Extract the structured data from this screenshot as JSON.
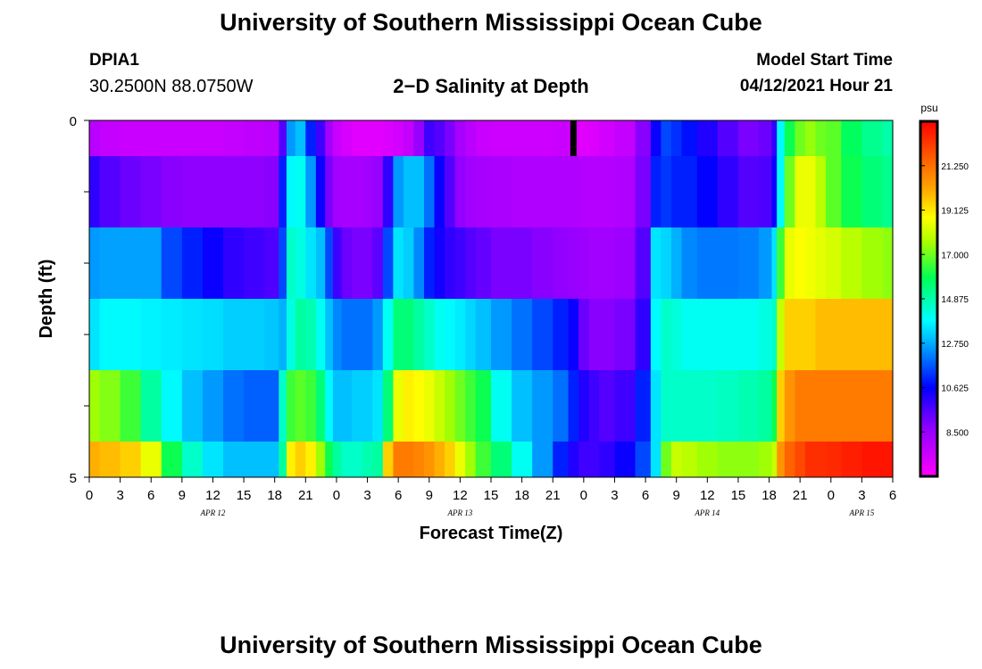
{
  "header": {
    "title": "University of Southern Mississippi Ocean Cube",
    "station": "DPIA1",
    "coords": "30.2500N  88.0750W",
    "subtitle": "2−D Salinity at Depth",
    "model_label": "Model Start Time",
    "model_value": "04/12/2021 Hour 21"
  },
  "footer": {
    "title": "University of Southern Mississippi Ocean Cube"
  },
  "chart_data": {
    "type": "heatmap",
    "xlabel": "Forecast Time(Z)",
    "ylabel": "Depth (ft)",
    "x_tick_labels": [
      "0",
      "3",
      "6",
      "9",
      "12",
      "15",
      "18",
      "21",
      "0",
      "3",
      "6",
      "9",
      "12",
      "15",
      "18",
      "21",
      "0",
      "3",
      "6",
      "9",
      "12",
      "15",
      "18",
      "21",
      "0",
      "3",
      "6"
    ],
    "x_day_labels": [
      {
        "label": "APR 12",
        "hour": 12
      },
      {
        "label": "APR 13",
        "hour": 36
      },
      {
        "label": "APR 14",
        "hour": 60
      },
      {
        "label": "APR 15",
        "hour": 75
      }
    ],
    "xlim_hours": [
      0,
      78
    ],
    "y_tick_labels": [
      {
        "label": "0",
        "depth": 0
      },
      {
        "label": "5",
        "depth": 5
      }
    ],
    "ylim": [
      0,
      5
    ],
    "depth_rows": [
      "0-0.5",
      "0.5-1.5",
      "1.5-2.5",
      "2.5-3.5",
      "3.5-4.5",
      "4.5-5"
    ],
    "colorbar": {
      "unit": "psu",
      "min": 6.375,
      "max": 23.375,
      "tick_labels": [
        "8.500",
        "10.625",
        "12.750",
        "14.875",
        "17.000",
        "19.125",
        "21.250"
      ],
      "tick_values": [
        8.5,
        10.625,
        12.75,
        14.875,
        17.0,
        19.125,
        21.25
      ]
    },
    "salinity_psu": {
      "hours": [
        0,
        2,
        4,
        6,
        8,
        10,
        12,
        14,
        16,
        18,
        18.8,
        19.5,
        20.5,
        21.5,
        22.5,
        23.3,
        24,
        25,
        26,
        27,
        28,
        29,
        30,
        31,
        32,
        33,
        34,
        35,
        36,
        37,
        38,
        40,
        42,
        44,
        46,
        47,
        48,
        49,
        50,
        52,
        54,
        55,
        56,
        57,
        58,
        60,
        62,
        64,
        66,
        66.5,
        67,
        68,
        69,
        70,
        71,
        72,
        74,
        76,
        78
      ],
      "rows": [
        [
          7.8,
          7.6,
          7.5,
          7.5,
          7.5,
          7.5,
          7.5,
          7.6,
          7.7,
          7.8,
          9.5,
          12.5,
          13.0,
          11.0,
          9.8,
          8.3,
          7.5,
          7.2,
          7.0,
          7.0,
          7.0,
          7.1,
          7.3,
          7.6,
          8.5,
          9.8,
          9.5,
          9.0,
          8.2,
          7.8,
          7.5,
          7.4,
          7.4,
          7.4,
          7.5,
          7.2,
          7.0,
          7.1,
          7.3,
          7.6,
          8.8,
          10.5,
          11.5,
          11.2,
          10.8,
          10.2,
          9.5,
          9.0,
          9.2,
          10.0,
          13.8,
          16.0,
          17.0,
          17.4,
          17.0,
          16.8,
          15.8,
          15.2,
          14.9
        ],
        [
          10.0,
          9.5,
          9.2,
          9.0,
          8.8,
          8.7,
          8.7,
          8.7,
          8.7,
          8.8,
          11.0,
          13.8,
          14.0,
          12.5,
          10.5,
          9.0,
          8.3,
          8.2,
          8.2,
          8.3,
          8.5,
          10.0,
          12.5,
          13.0,
          13.0,
          12.0,
          10.5,
          9.5,
          8.6,
          8.3,
          8.2,
          8.1,
          8.0,
          8.0,
          8.0,
          8.0,
          7.9,
          7.9,
          7.9,
          8.0,
          9.0,
          11.0,
          11.3,
          11.0,
          11.0,
          10.6,
          10.0,
          9.5,
          9.6,
          10.5,
          13.8,
          17.0,
          18.5,
          18.5,
          17.8,
          16.8,
          16.0,
          15.5,
          15.2
        ],
        [
          12.5,
          12.6,
          12.6,
          12.6,
          11.5,
          11.0,
          10.5,
          10.0,
          9.8,
          9.6,
          11.5,
          14.5,
          14.2,
          13.5,
          13.0,
          11.5,
          9.8,
          9.2,
          9.0,
          9.0,
          9.4,
          11.5,
          13.5,
          13.2,
          12.3,
          11.0,
          10.4,
          10.0,
          9.8,
          9.5,
          9.3,
          9.0,
          9.0,
          8.8,
          8.6,
          8.5,
          8.4,
          8.3,
          8.3,
          8.4,
          9.5,
          13.5,
          13.3,
          12.8,
          12.3,
          12.1,
          12.1,
          12.2,
          12.5,
          13.5,
          16.5,
          18.5,
          18.8,
          18.6,
          18.4,
          18.2,
          17.8,
          17.5,
          17.3
        ],
        [
          13.5,
          13.8,
          13.8,
          13.7,
          13.6,
          13.5,
          13.4,
          13.2,
          13.2,
          13.1,
          12.8,
          14.2,
          15.0,
          14.8,
          14.0,
          13.0,
          12.3,
          12.0,
          12.0,
          12.0,
          12.5,
          14.0,
          15.5,
          15.5,
          15.0,
          14.5,
          14.0,
          13.8,
          13.6,
          13.3,
          13.0,
          12.5,
          12.0,
          11.5,
          11.0,
          10.5,
          9.2,
          8.8,
          8.8,
          9.0,
          10.0,
          13.8,
          14.5,
          14.3,
          14.0,
          14.0,
          14.0,
          14.0,
          14.2,
          14.5,
          18.0,
          19.5,
          19.5,
          19.5,
          19.8,
          19.8,
          19.8,
          19.8,
          19.8
        ],
        [
          17.5,
          17.2,
          16.5,
          15.0,
          13.8,
          13.0,
          12.5,
          12.0,
          11.8,
          11.8,
          14.5,
          16.5,
          16.8,
          16.5,
          15.5,
          13.8,
          13.0,
          13.0,
          13.2,
          13.2,
          13.5,
          15.5,
          18.5,
          19.0,
          18.8,
          18.5,
          18.0,
          17.5,
          17.0,
          16.5,
          16.0,
          14.0,
          13.0,
          12.5,
          12.0,
          11.0,
          10.2,
          9.8,
          9.5,
          9.8,
          11.0,
          13.5,
          14.5,
          14.5,
          14.5,
          14.5,
          14.6,
          14.8,
          15.0,
          16.0,
          19.5,
          20.5,
          21.0,
          21.0,
          21.0,
          21.0,
          21.0,
          21.0,
          21.0
        ],
        [
          20.0,
          19.8,
          19.5,
          18.5,
          16.0,
          14.5,
          13.5,
          13.0,
          13.0,
          13.0,
          15.0,
          19.0,
          19.5,
          19.0,
          17.5,
          16.0,
          15.0,
          14.5,
          14.5,
          14.8,
          15.0,
          19.5,
          21.0,
          21.0,
          20.8,
          20.5,
          20.0,
          19.5,
          18.5,
          17.5,
          16.5,
          15.5,
          14.0,
          12.5,
          11.0,
          10.2,
          9.8,
          9.8,
          10.0,
          10.5,
          11.5,
          13.5,
          17.0,
          18.0,
          17.8,
          17.5,
          17.3,
          17.3,
          17.5,
          18.0,
          20.5,
          21.5,
          22.0,
          22.5,
          22.5,
          22.6,
          22.8,
          23.0,
          23.0
        ]
      ]
    },
    "missing_marker": {
      "hour": 47,
      "depth_from": 0,
      "depth_to": 0.5
    }
  }
}
